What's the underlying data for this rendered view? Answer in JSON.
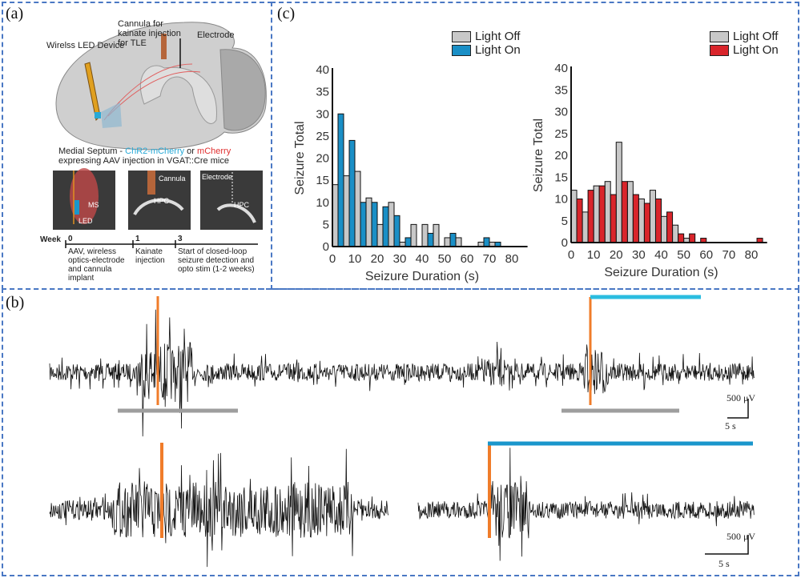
{
  "panels": {
    "a": "(a)",
    "b": "(b)",
    "c": "(c)"
  },
  "schematic": {
    "cannula_label": "Cannula for kainate injection for TLE",
    "electrode_label": "Electrode",
    "led_label": "Wirelss LED Device",
    "septum_prefix": "Medial Septum - ",
    "chr2": "ChR2-mCherry",
    "or": " or ",
    "mcherry": "mCherry",
    "septum_line2": "expressing AAV injection in VGAT::Cre mice",
    "img1_labels": [
      "MS",
      "LED"
    ],
    "img2_labels": [
      "Cannula",
      "HPC"
    ],
    "img3_labels": [
      "Electrode",
      "HPC"
    ],
    "colors": {
      "chr2": "#29a9d6",
      "mcherry": "#e03030",
      "cannula": "#b5653a"
    }
  },
  "timeline": {
    "axis_label": "Week",
    "ticks": [
      {
        "week": "0",
        "text": "AAV, wireless optics-electrode and cannula implant"
      },
      {
        "week": "1",
        "text": "Kainate injection"
      },
      {
        "week": "3",
        "text": "Start of closed-loop seizure detection and opto stim (1-2 weeks)"
      }
    ]
  },
  "traces": {
    "scale_voltage": "500 μV",
    "scale_time": "5 s",
    "colors": {
      "trigger": "#f07c2a",
      "light_cyan": "#2bbde0",
      "light_blue": "#1a96cc",
      "seizure_bar": "#9e9e9e"
    }
  },
  "chart_data": [
    {
      "type": "bar",
      "xlabel": "Seizure Duration (s)",
      "ylabel": "Seizure Total",
      "xlim": [
        0,
        85
      ],
      "ylim": [
        0,
        40
      ],
      "xticks": [
        "0",
        "10",
        "20",
        "30",
        "40",
        "50",
        "60",
        "70",
        "80"
      ],
      "yticks": [
        "0",
        "5",
        "10",
        "15",
        "20",
        "25",
        "30",
        "35",
        "40"
      ],
      "bin_starts": [
        0,
        5,
        10,
        15,
        20,
        25,
        30,
        35,
        40,
        45,
        50,
        55,
        60,
        65,
        70,
        75,
        80
      ],
      "legend": "top-right",
      "series": [
        {
          "name": "Light Off",
          "color": "#c8c8c8",
          "offset": 0,
          "values": [
            14,
            16,
            17,
            11,
            5,
            10,
            1,
            5,
            5,
            5,
            2,
            2,
            0,
            1,
            1,
            0,
            0
          ]
        },
        {
          "name": "Light On",
          "color": "#1a8fc6",
          "offset": 2.5,
          "values": [
            30,
            24,
            10,
            10,
            9,
            7,
            2,
            0,
            3,
            0,
            3,
            0,
            0,
            2,
            1,
            0,
            0
          ]
        }
      ]
    },
    {
      "type": "bar",
      "xlabel": "Seizure Duration (s)",
      "ylabel": "Seizure Total",
      "xlim": [
        0,
        85
      ],
      "ylim": [
        0,
        40
      ],
      "xticks": [
        "0",
        "10",
        "20",
        "30",
        "40",
        "50",
        "60",
        "70",
        "80"
      ],
      "yticks": [
        "0",
        "5",
        "10",
        "15",
        "20",
        "25",
        "30",
        "35",
        "40"
      ],
      "bin_starts": [
        0,
        5,
        10,
        15,
        20,
        25,
        30,
        35,
        40,
        45,
        50,
        55,
        60,
        65,
        70,
        75,
        80
      ],
      "legend": "top-right",
      "series": [
        {
          "name": "Light Off",
          "color": "#c8c8c8",
          "offset": 0,
          "values": [
            12,
            7,
            13,
            14,
            23,
            14,
            10,
            12,
            6,
            4,
            1,
            0,
            0,
            0,
            0,
            0,
            0
          ]
        },
        {
          "name": "Light On",
          "color": "#d9252b",
          "offset": 2.5,
          "values": [
            10,
            12,
            13,
            11,
            14,
            11,
            9,
            10,
            7,
            2,
            2,
            1,
            0,
            0,
            0,
            0,
            1
          ]
        }
      ]
    }
  ]
}
